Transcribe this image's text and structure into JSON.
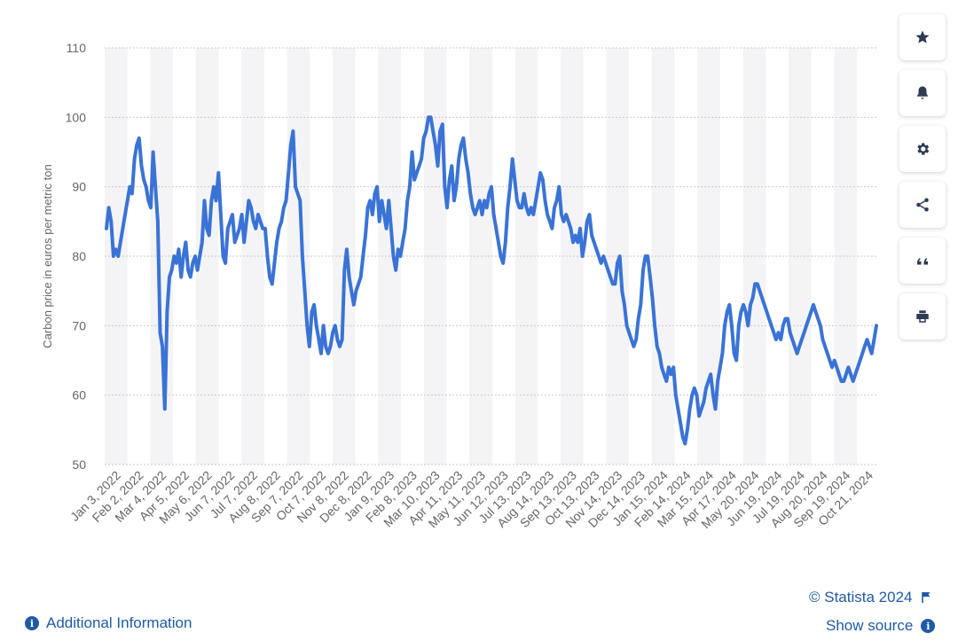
{
  "chart_data": {
    "type": "line",
    "ylabel": "Carbon price in euros per metric ton",
    "ylim": [
      50,
      110
    ],
    "yticks": [
      50,
      60,
      70,
      80,
      90,
      100,
      110
    ],
    "grid": true,
    "series_color": "#3a73d6",
    "x_tick_labels": [
      "Jan 3, 2022",
      "Feb 2, 2022",
      "Mar 4, 2022",
      "Apr 5, 2022",
      "May 6, 2022",
      "Jun 7, 2022",
      "Jul 7, 2022",
      "Aug 8, 2022",
      "Sep 7, 2022",
      "Oct 7, 2022",
      "Nov 8, 2022",
      "Dec 8, 2022",
      "Jan 9, 2023",
      "Feb 8, 2023",
      "Mar 10, 2023",
      "Apr 11, 2023",
      "May 11, 2023",
      "Jun 12, 2023",
      "Jul 13, 2023",
      "Aug 14, 2023",
      "Sep 13, 2023",
      "Oct 13, 2023",
      "Nov 14, 2023",
      "Dec 14, 2023",
      "Jan 15, 2024",
      "Feb 14, 2024",
      "Mar 15, 2024",
      "Apr 17, 2024",
      "May 20, 2024",
      "Jun 19, 2024",
      "Jul 19, 2024",
      "Aug 20, 2024",
      "Sep 19, 2024",
      "Oct 21, 2024"
    ],
    "series": [
      {
        "values": [
          84,
          87,
          85,
          80,
          81,
          80,
          82,
          84,
          86,
          88,
          90,
          89,
          94,
          96,
          97,
          93,
          91,
          90,
          88,
          87,
          95,
          90,
          85,
          69,
          67,
          58,
          72,
          77,
          78,
          80,
          79,
          81,
          77,
          80,
          82,
          78,
          77,
          79,
          80,
          78,
          80,
          82,
          88,
          84,
          83,
          88,
          90,
          88,
          92,
          86,
          80,
          79,
          84,
          85,
          86,
          82,
          83,
          84,
          86,
          82,
          85,
          88,
          87,
          85,
          84,
          86,
          85,
          84,
          84,
          80,
          77,
          76,
          79,
          82,
          84,
          85,
          87,
          88,
          92,
          96,
          98,
          90,
          89,
          88,
          80,
          75,
          70,
          67,
          72,
          73,
          70,
          68,
          66,
          70,
          67,
          66,
          67,
          69,
          70,
          68,
          67,
          68,
          78,
          81,
          77,
          75,
          73,
          75,
          76,
          77,
          80,
          83,
          87,
          88,
          86,
          89,
          90,
          85,
          88,
          86,
          84,
          88,
          84,
          80,
          78,
          81,
          80,
          82,
          84,
          88,
          90,
          95,
          91,
          92,
          93,
          94,
          97,
          98,
          100,
          100,
          98,
          96,
          93,
          98,
          99,
          90,
          87,
          91,
          93,
          88,
          90,
          94,
          96,
          97,
          94,
          92,
          89,
          87,
          86,
          87,
          88,
          86,
          88,
          87,
          89,
          90,
          86,
          84,
          82,
          80,
          79,
          82,
          87,
          90,
          94,
          91,
          88,
          87,
          87,
          89,
          87,
          86,
          87,
          86,
          88,
          90,
          92,
          91,
          88,
          86,
          85,
          84,
          87,
          88,
          90,
          86,
          85,
          86,
          85,
          84,
          82,
          83,
          82,
          84,
          80,
          82,
          85,
          86,
          83,
          82,
          81,
          80,
          79,
          80,
          79,
          78,
          77,
          76,
          76,
          79,
          80,
          75,
          73,
          70,
          69,
          68,
          67,
          68,
          71,
          73,
          78,
          80,
          80,
          77,
          74,
          70,
          67,
          66,
          64,
          63,
          62,
          64,
          63,
          64,
          60,
          58,
          56,
          54,
          53,
          55,
          58,
          60,
          61,
          60,
          57,
          58,
          59,
          61,
          62,
          63,
          60,
          58,
          62,
          64,
          66,
          70,
          72,
          73,
          70,
          66,
          65,
          70,
          72,
          73,
          72,
          70,
          73,
          74,
          76,
          76,
          75,
          74,
          73,
          72,
          71,
          70,
          69,
          68,
          69,
          68,
          70,
          71,
          71,
          69,
          68,
          67,
          66,
          67,
          68,
          69,
          70,
          71,
          72,
          73,
          72,
          71,
          70,
          68,
          67,
          66,
          65,
          64,
          65,
          64,
          63,
          62,
          62,
          63,
          64,
          63,
          62,
          63,
          64,
          65,
          66,
          67,
          68,
          67,
          66,
          68,
          70
        ]
      }
    ]
  },
  "toolbar": {
    "buttons": [
      {
        "icon": "star-icon"
      },
      {
        "icon": "bell-icon"
      },
      {
        "icon": "gear-icon"
      },
      {
        "icon": "share-icon"
      },
      {
        "icon": "quote-icon"
      },
      {
        "icon": "print-icon"
      }
    ]
  },
  "footer": {
    "copyright": "© Statista 2024",
    "additional_info": "Additional Information",
    "show_source": "Show source",
    "link_color": "#1f5aa6"
  }
}
